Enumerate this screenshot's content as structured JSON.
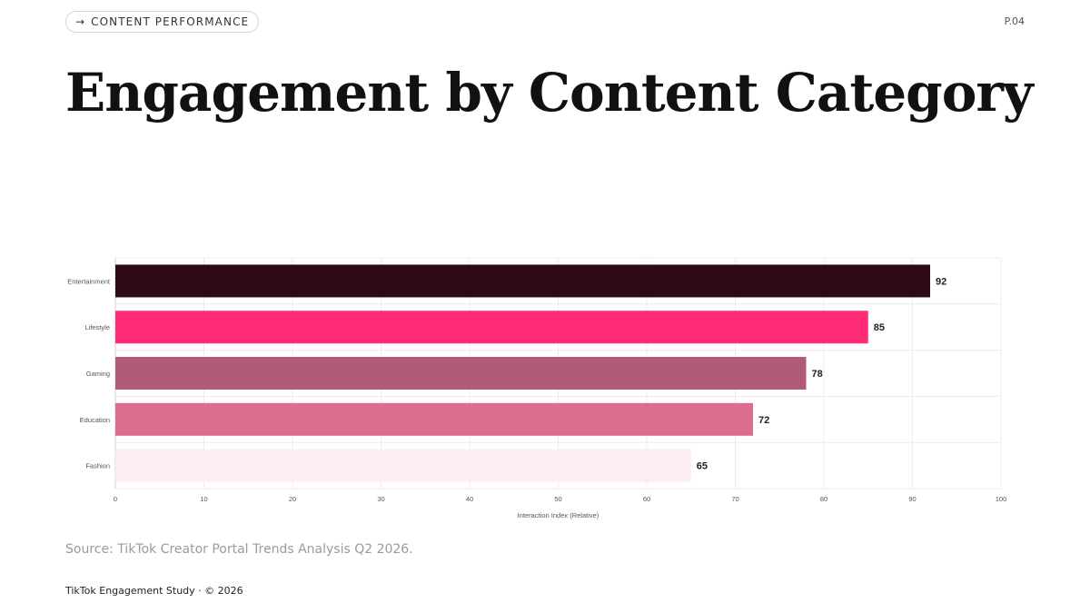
{
  "header": {
    "kicker_arrow": "→",
    "kicker_label": "CONTENT PERFORMANCE",
    "page_number": "P.04"
  },
  "title": "Engagement by Content Category",
  "chart_data": {
    "type": "bar",
    "orientation": "horizontal",
    "categories": [
      "Entertainment",
      "Lifestyle",
      "Gaming",
      "Education",
      "Fashion"
    ],
    "values": [
      92,
      85,
      78,
      72,
      65
    ],
    "colors": [
      "#2d0a15",
      "#fe2c76",
      "#b25b79",
      "#db6e8f",
      "#fdecf1"
    ],
    "xlabel": "Interaction Index (Relative)",
    "ylabel": "",
    "xlim": [
      0,
      100
    ],
    "xticks": [
      0,
      10,
      20,
      30,
      40,
      50,
      60,
      70,
      80,
      90,
      100
    ],
    "grid": true,
    "data_labels": true
  },
  "source": "Source: TikTok Creator Portal Trends Analysis Q2 2026.",
  "footer": "TikTok Engagement Study · © 2026"
}
